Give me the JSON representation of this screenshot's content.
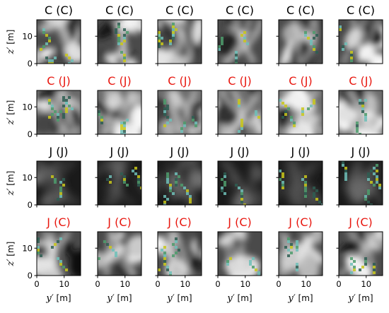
{
  "panels": {
    "rows": [
      {
        "titles": [
          "C (C)",
          "C (C)",
          "C (C)",
          "C (C)",
          "C (C)",
          "C (C)"
        ],
        "title_color": "#000000",
        "style": "mixed"
      },
      {
        "titles": [
          "C (J)",
          "C (J)",
          "C (J)",
          "C (J)",
          "C (J)",
          "C (J)"
        ],
        "title_color": "#e8170f",
        "style": "soft"
      },
      {
        "titles": [
          "J (J)",
          "J (J)",
          "J (J)",
          "J (J)",
          "J (J)",
          "J (J)"
        ],
        "title_color": "#000000",
        "style": "dark"
      },
      {
        "titles": [
          "J (C)",
          "J (C)",
          "J (C)",
          "J (C)",
          "J (C)",
          "J (C)"
        ],
        "title_color": "#e8170f",
        "style": "mixed"
      }
    ],
    "axes": {
      "y_ticks": [
        "0",
        "10"
      ],
      "x_ticks": [
        "0",
        "10"
      ],
      "ylabel_var": "z′",
      "ylabel_unit": " [m]",
      "xlabel_var": "y′",
      "xlabel_unit": " [m]",
      "range_m": [
        0,
        16
      ]
    },
    "colors": {
      "overlay_yellow": "#c9c81a",
      "overlay_green": "#4d9c6c",
      "overlay_teal": "#6fc0b8",
      "overlay_dark": "#2e5e52"
    }
  }
}
